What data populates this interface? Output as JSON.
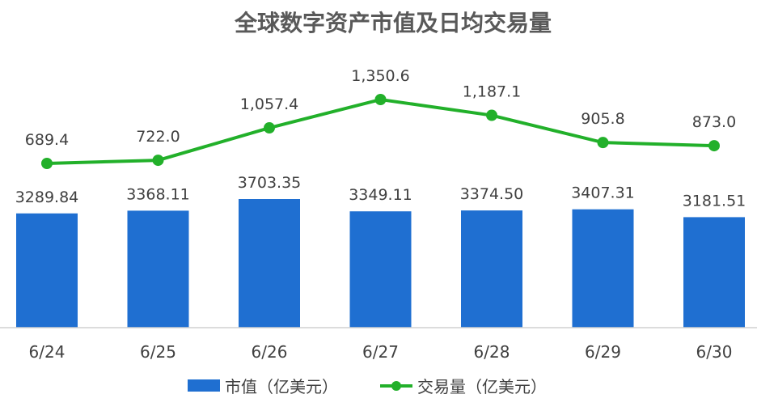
{
  "chart_data": {
    "type": "bar",
    "title": "全球数字资产市值及日均交易量",
    "categories": [
      "6/24",
      "6/25",
      "6/26",
      "6/27",
      "6/28",
      "6/29",
      "6/30"
    ],
    "series": [
      {
        "name": "市值（亿美元）",
        "type": "bar",
        "values": [
          3289.84,
          3368.11,
          3703.35,
          3349.11,
          3374.5,
          3407.31,
          3181.51
        ],
        "labels": [
          "3289.84",
          "3368.11",
          "3703.35",
          "3349.11",
          "3374.50",
          "3407.31",
          "3181.51"
        ],
        "color": "#1f6fd1"
      },
      {
        "name": "交易量（亿美元）",
        "type": "line",
        "values": [
          689.4,
          722.0,
          1057.4,
          1350.6,
          1187.1,
          905.8,
          873.0
        ],
        "labels": [
          "689.4",
          "722.0",
          "1,057.4",
          "1,350.6",
          "1,187.1",
          "905.8",
          "873.0"
        ],
        "color": "#22b02a"
      }
    ],
    "grid": false,
    "legend_position": "bottom"
  }
}
